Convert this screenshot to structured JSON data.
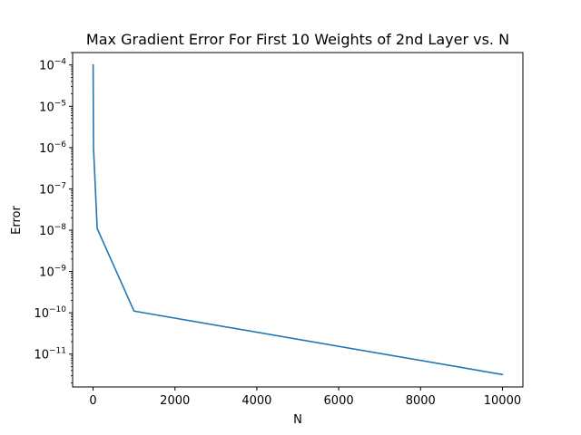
{
  "chart_data": {
    "type": "line",
    "title": "Max Gradient Error For First 10 Weights of 2nd Layer vs. N",
    "xlabel": "N",
    "ylabel": "Error",
    "yscale": "log",
    "xlim": [
      -500,
      10500
    ],
    "ylim": [
      1.6e-12,
      0.0002
    ],
    "grid": false,
    "legend": "none",
    "series_color": "#1f77b4",
    "x_ticks": [
      0,
      2000,
      4000,
      6000,
      8000,
      10000
    ],
    "x_tick_labels": [
      "0",
      "2000",
      "4000",
      "6000",
      "8000",
      "10000"
    ],
    "y_ticks": [
      {
        "value": 1e-11,
        "base": "10",
        "exp": "−11"
      },
      {
        "value": 1e-10,
        "base": "10",
        "exp": "−10"
      },
      {
        "value": 1e-09,
        "base": "10",
        "exp": "−9"
      },
      {
        "value": 1e-08,
        "base": "10",
        "exp": "−8"
      },
      {
        "value": 1e-07,
        "base": "10",
        "exp": "−7"
      },
      {
        "value": 1e-06,
        "base": "10",
        "exp": "−6"
      },
      {
        "value": 1e-05,
        "base": "10",
        "exp": "−5"
      },
      {
        "value": 0.0001,
        "base": "10",
        "exp": "−4"
      }
    ],
    "series": [
      {
        "x": [
          1,
          10,
          100,
          1000,
          10000
        ],
        "y": [
          0.0001,
          1e-06,
          1.1e-08,
          1.1e-10,
          3.2e-12
        ]
      }
    ]
  }
}
